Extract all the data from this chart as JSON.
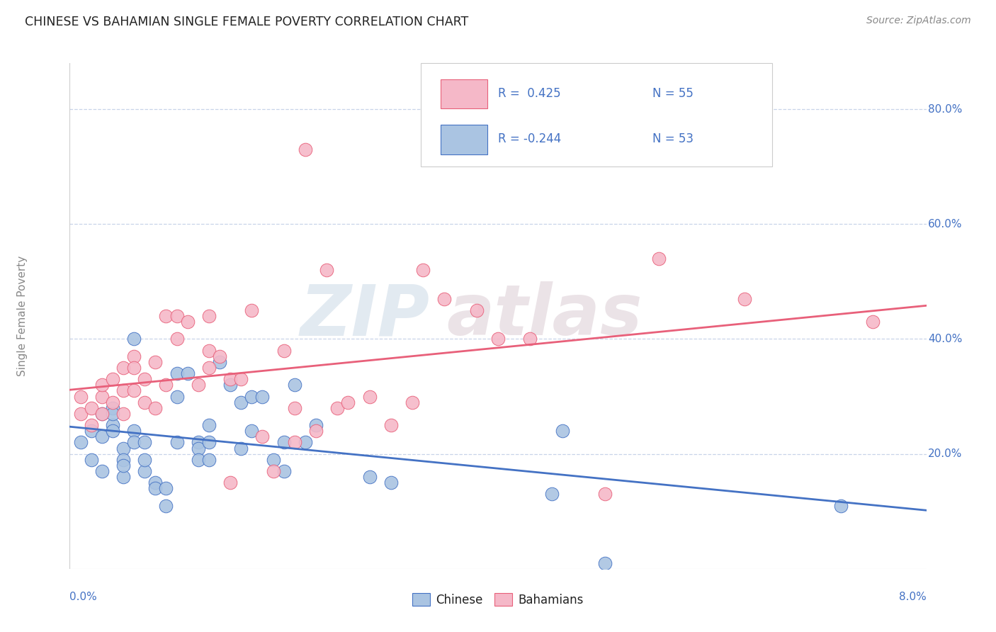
{
  "title": "CHINESE VS BAHAMIAN SINGLE FEMALE POVERTY CORRELATION CHART",
  "source": "Source: ZipAtlas.com",
  "ylabel": "Single Female Poverty",
  "right_yticks": [
    "20.0%",
    "40.0%",
    "60.0%",
    "80.0%"
  ],
  "right_ytick_vals": [
    0.2,
    0.4,
    0.6,
    0.8
  ],
  "xlim": [
    0.0,
    0.08
  ],
  "ylim": [
    0.0,
    0.88
  ],
  "watermark_zip": "ZIP",
  "watermark_atlas": "atlas",
  "color_chinese": "#aac4e2",
  "color_bahamian": "#f5b8c8",
  "color_line_chinese": "#4472c4",
  "color_line_bahamian": "#e8607a",
  "color_text_blue": "#4472c4",
  "background_color": "#ffffff",
  "grid_color": "#c8d4e8",
  "chinese_x": [
    0.001,
    0.002,
    0.002,
    0.003,
    0.003,
    0.003,
    0.004,
    0.004,
    0.004,
    0.004,
    0.005,
    0.005,
    0.005,
    0.005,
    0.006,
    0.006,
    0.006,
    0.007,
    0.007,
    0.007,
    0.008,
    0.008,
    0.009,
    0.009,
    0.01,
    0.01,
    0.01,
    0.011,
    0.012,
    0.012,
    0.012,
    0.013,
    0.013,
    0.013,
    0.014,
    0.015,
    0.016,
    0.016,
    0.017,
    0.017,
    0.018,
    0.019,
    0.02,
    0.02,
    0.021,
    0.022,
    0.023,
    0.028,
    0.03,
    0.045,
    0.046,
    0.05,
    0.072
  ],
  "chinese_y": [
    0.22,
    0.19,
    0.24,
    0.27,
    0.23,
    0.17,
    0.28,
    0.25,
    0.27,
    0.24,
    0.21,
    0.19,
    0.16,
    0.18,
    0.4,
    0.24,
    0.22,
    0.22,
    0.17,
    0.19,
    0.15,
    0.14,
    0.14,
    0.11,
    0.34,
    0.3,
    0.22,
    0.34,
    0.22,
    0.21,
    0.19,
    0.22,
    0.19,
    0.25,
    0.36,
    0.32,
    0.21,
    0.29,
    0.3,
    0.24,
    0.3,
    0.19,
    0.17,
    0.22,
    0.32,
    0.22,
    0.25,
    0.16,
    0.15,
    0.13,
    0.24,
    0.01,
    0.11
  ],
  "bahamian_x": [
    0.001,
    0.001,
    0.002,
    0.002,
    0.003,
    0.003,
    0.003,
    0.004,
    0.004,
    0.005,
    0.005,
    0.005,
    0.006,
    0.006,
    0.006,
    0.007,
    0.007,
    0.008,
    0.008,
    0.009,
    0.009,
    0.01,
    0.01,
    0.011,
    0.012,
    0.013,
    0.013,
    0.013,
    0.014,
    0.015,
    0.015,
    0.016,
    0.017,
    0.018,
    0.019,
    0.02,
    0.021,
    0.021,
    0.022,
    0.023,
    0.024,
    0.025,
    0.026,
    0.028,
    0.03,
    0.032,
    0.033,
    0.035,
    0.038,
    0.04,
    0.043,
    0.05,
    0.055,
    0.063,
    0.075
  ],
  "bahamian_y": [
    0.27,
    0.3,
    0.28,
    0.25,
    0.3,
    0.32,
    0.27,
    0.29,
    0.33,
    0.31,
    0.35,
    0.27,
    0.37,
    0.31,
    0.35,
    0.29,
    0.33,
    0.36,
    0.28,
    0.44,
    0.32,
    0.44,
    0.4,
    0.43,
    0.32,
    0.35,
    0.44,
    0.38,
    0.37,
    0.33,
    0.15,
    0.33,
    0.45,
    0.23,
    0.17,
    0.38,
    0.22,
    0.28,
    0.73,
    0.24,
    0.52,
    0.28,
    0.29,
    0.3,
    0.25,
    0.29,
    0.52,
    0.47,
    0.45,
    0.4,
    0.4,
    0.13,
    0.54,
    0.47,
    0.43
  ]
}
